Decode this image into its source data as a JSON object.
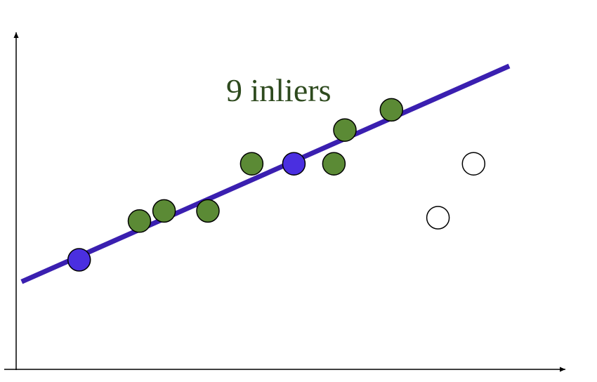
{
  "colors": {
    "line": "#3a1fb0",
    "inlier": "#5b8a35",
    "sample": "#4a2fe0",
    "outlier": "#ffffff",
    "label": "#2e4a1e",
    "axis": "#000000"
  },
  "annotation": {
    "text": "9 inliers"
  },
  "chart_data": {
    "type": "scatter",
    "xlim": [
      0,
      10
    ],
    "ylim": [
      0,
      10
    ],
    "fit_line": {
      "from": [
        0.1,
        2.6
      ],
      "to": [
        9.0,
        9.0
      ]
    },
    "points": [
      {
        "x": 1.15,
        "y": 3.25,
        "kind": "sample"
      },
      {
        "x": 5.07,
        "y": 6.1,
        "kind": "sample"
      },
      {
        "x": 2.25,
        "y": 4.4,
        "kind": "inlier"
      },
      {
        "x": 2.7,
        "y": 4.7,
        "kind": "inlier"
      },
      {
        "x": 3.5,
        "y": 4.7,
        "kind": "inlier"
      },
      {
        "x": 4.3,
        "y": 6.1,
        "kind": "inlier"
      },
      {
        "x": 5.8,
        "y": 6.1,
        "kind": "inlier"
      },
      {
        "x": 6.0,
        "y": 7.1,
        "kind": "inlier"
      },
      {
        "x": 6.85,
        "y": 7.7,
        "kind": "inlier"
      },
      {
        "x": 7.7,
        "y": 4.5,
        "kind": "outlier"
      },
      {
        "x": 8.35,
        "y": 6.1,
        "kind": "outlier"
      }
    ]
  }
}
